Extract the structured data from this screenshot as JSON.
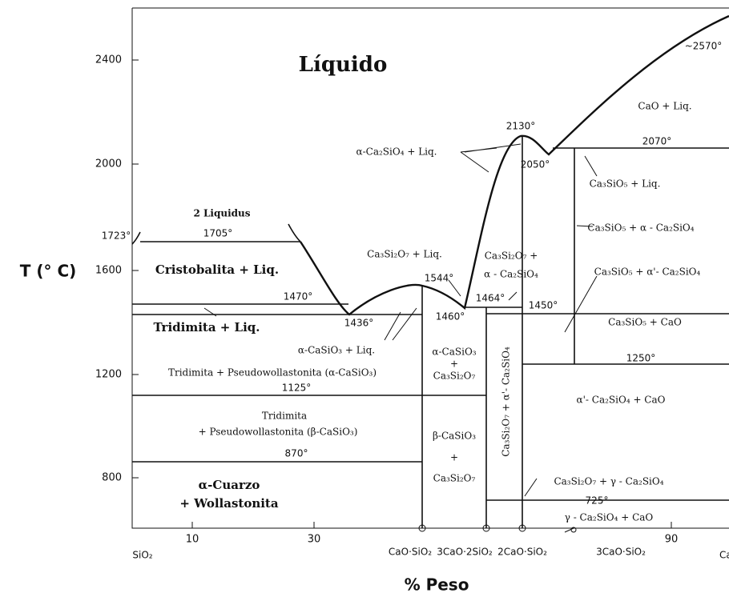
{
  "title": "Líquido",
  "y_axis_label": "T (° C)",
  "x_axis_label": "% Peso",
  "y_ticks": [
    "2400",
    "2000",
    "1600",
    "1200",
    "800"
  ],
  "x_ticks": [
    "10",
    "30",
    "90"
  ],
  "x_end_labels": [
    "SiO₂",
    "CaO"
  ],
  "compounds": [
    "CaO·SiO₂",
    "3CaO·2SiO₂",
    "2CaO·SiO₂",
    "3CaO·SiO₂"
  ],
  "temperatures": [
    "1723°",
    "1705°",
    "1470°",
    "1436°",
    "1544°",
    "1460°",
    "1464°",
    "1450°",
    "2130°",
    "2050°",
    "2070°",
    "~2570°",
    "1250°",
    "1125°",
    "870°",
    "725°"
  ],
  "regions": [
    "2 Liquidus",
    "Cristobalita + Liq.",
    "Tridimita + Liq.",
    "α-CaSiO₃ + Liq.",
    "Tridimita + Pseudowollastonita (α-CaSiO₃)",
    "Tridimita",
    "+ Pseudowollastonita (β-CaSiO₃)",
    "α-Cuarzo",
    "+ Wollastonita",
    "α-CaSiO₃",
    "+",
    "Ca₃Si₂O₇",
    "β-CaSiO₃",
    "+",
    "Ca₃Si₂O₇",
    "Ca₃Si₂O₇ + Liq.",
    "Ca₃Si₂O₇ +",
    "α - Ca₂SiO₄",
    "Ca₃Si₂O₇ + α'- Ca₂SiO₄",
    "α-Ca₂SiO₄ + Liq.",
    "CaO + Liq.",
    "Ca₃SiO₅ + Liq.",
    "Ca₃SiO₅ + α - Ca₂SiO₄",
    "Ca₃SiO₅ + α'- Ca₂SiO₄",
    "Ca₃SiO₅ + CaO",
    "α'- Ca₂SiO₄ + CaO",
    "Ca₃Si₂O₇ + γ - Ca₂SiO₄",
    "γ - Ca₂SiO₄ + CaO"
  ]
}
